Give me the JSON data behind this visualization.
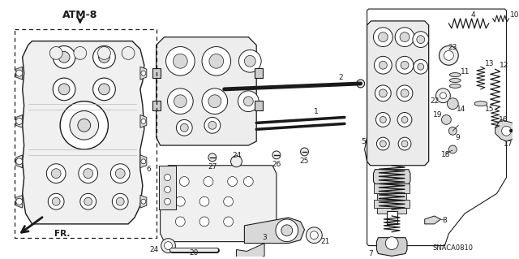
{
  "title": "ATM-8",
  "catalog_code": "SNACA0810",
  "bg_color": "#ffffff",
  "line_color": "#1a1a1a",
  "fig_width": 6.4,
  "fig_height": 3.19,
  "dpi": 100,
  "label_fontsize": 6.5,
  "title_fontsize": 8.5,
  "gray_fill": "#d8d8d8",
  "light_gray": "#eeeeee",
  "mid_gray": "#aaaaaa",
  "dark_gray": "#888888"
}
